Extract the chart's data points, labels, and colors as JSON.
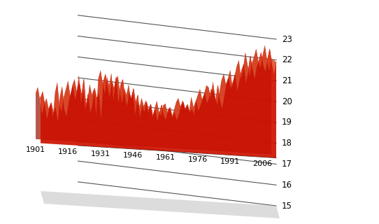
{
  "background_color": "#ffffff",
  "line_color": "#cc1100",
  "fill_color": "#cc1100",
  "fill_color_dark": "#991100",
  "shadow_color": "#bbbbbb",
  "grid_color": "#555555",
  "yticks": [
    15,
    16,
    17,
    18,
    19,
    20,
    21,
    22,
    23
  ],
  "xtick_labels": [
    "1901",
    "1916",
    "1931",
    "1946",
    "1961",
    "1976",
    "1991",
    "2006"
  ],
  "xtick_positions": [
    0,
    15,
    30,
    45,
    60,
    75,
    90,
    105
  ],
  "ymin": 15,
  "ymax": 23,
  "baseline": 17.3,
  "depth": 0.7,
  "years_count": 110,
  "values": [
    19.5,
    19.8,
    19.2,
    18.5,
    19.0,
    19.3,
    18.8,
    19.1,
    18.4,
    19.6,
    20.1,
    19.0,
    18.7,
    19.4,
    19.8,
    20.2,
    19.5,
    20.0,
    20.3,
    19.7,
    20.5,
    19.2,
    19.8,
    18.9,
    19.3,
    20.1,
    19.6,
    19.9,
    18.6,
    20.4,
    20.8,
    20.2,
    19.7,
    20.5,
    20.1,
    20.7,
    19.4,
    20.3,
    20.6,
    19.8,
    19.3,
    20.0,
    19.7,
    20.2,
    19.5,
    19.9,
    18.8,
    19.4,
    19.1,
    19.6,
    19.2,
    19.5,
    18.9,
    19.3,
    18.7,
    19.1,
    19.5,
    19.0,
    18.8,
    19.3,
    19.4,
    18.9,
    19.2,
    18.8,
    19.1,
    19.5,
    19.7,
    19.3,
    19.6,
    19.2,
    19.4,
    19.1,
    19.8,
    19.3,
    19.6,
    19.9,
    20.2,
    19.7,
    20.0,
    20.4,
    20.3,
    19.8,
    20.6,
    19.9,
    19.5,
    20.1,
    20.7,
    21.0,
    20.5,
    20.8,
    21.2,
    20.4,
    20.9,
    21.4,
    21.7,
    20.8,
    21.3,
    22.1,
    21.5,
    21.0,
    21.6,
    21.9,
    22.3,
    21.7,
    21.4,
    22.0,
    22.5,
    21.8,
    21.3,
    21.9
  ]
}
